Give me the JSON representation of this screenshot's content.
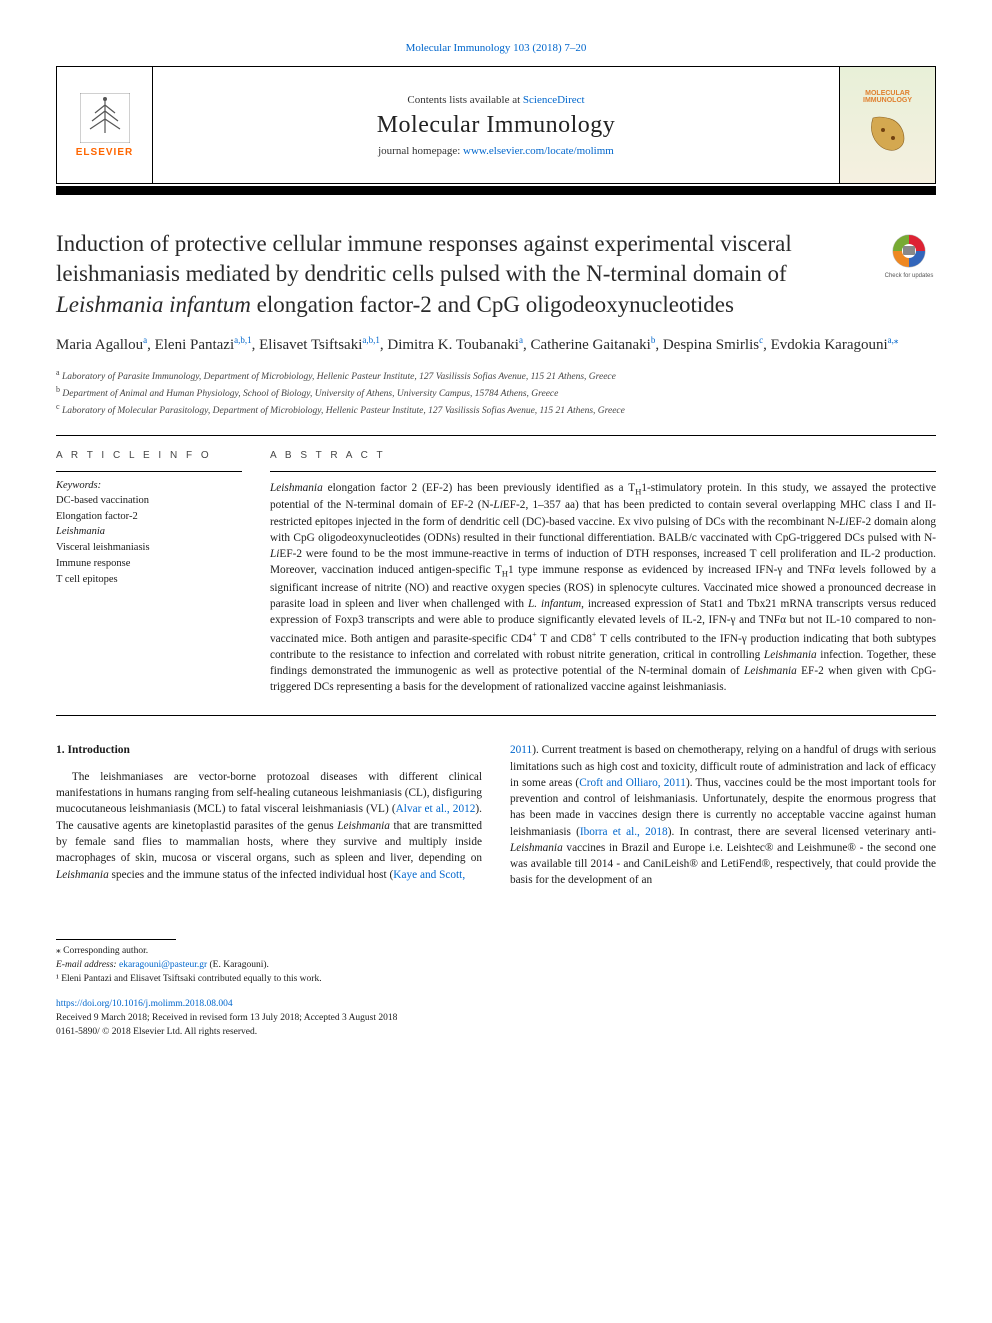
{
  "top_link": "Molecular Immunology 103 (2018) 7–20",
  "header": {
    "publisher_label": "ELSEVIER",
    "contents_prefix": "Contents lists available at ",
    "contents_link": "ScienceDirect",
    "journal_name": "Molecular Immunology",
    "homepage_prefix": "journal homepage: ",
    "homepage_link": "www.elsevier.com/locate/molimm",
    "cover_title": "MOLECULAR IMMUNOLOGY"
  },
  "check_updates_label": "Check for updates",
  "title_parts": {
    "p1": "Induction of protective cellular immune responses against experimental visceral leishmaniasis mediated by dendritic cells pulsed with the N-terminal domain of ",
    "ital": "Leishmania infantum",
    "p2": " elongation factor-2 and CpG oligodeoxynucleotides"
  },
  "authors": {
    "list": [
      {
        "name": "Maria Agallou",
        "sup": "a"
      },
      {
        "name": "Eleni Pantazi",
        "sup": "a,b,1"
      },
      {
        "name": "Elisavet Tsiftsaki",
        "sup": "a,b,1"
      },
      {
        "name": "Dimitra K. Toubanaki",
        "sup": "a"
      },
      {
        "name": "Catherine Gaitanaki",
        "sup": "b"
      },
      {
        "name": "Despina Smirlis",
        "sup": "c"
      },
      {
        "name": "Evdokia Karagouni",
        "sup": "a,⁎"
      }
    ]
  },
  "affiliations": [
    {
      "sup": "a",
      "text": "Laboratory of Parasite Immunology, Department of Microbiology, Hellenic Pasteur Institute, 127 Vasilissis Sofias Avenue, 115 21 Athens, Greece"
    },
    {
      "sup": "b",
      "text": "Department of Animal and Human Physiology, School of Biology, University of Athens, University Campus, 15784 Athens, Greece"
    },
    {
      "sup": "c",
      "text": "Laboratory of Molecular Parasitology, Department of Microbiology, Hellenic Pasteur Institute, 127 Vasilissis Sofias Avenue, 115 21 Athens, Greece"
    }
  ],
  "article_info": {
    "heading": "A R T I C L E  I N F O",
    "keywords_label": "Keywords:",
    "keywords": [
      "DC-based vaccination",
      "Elongation factor-2",
      "Leishmania",
      "Visceral leishmaniasis",
      "Immune response",
      "T cell epitopes"
    ],
    "keywords_italic_idx": 2
  },
  "abstract": {
    "heading": "A B S T R A C T",
    "text_parts": [
      {
        "t": "Leishmania",
        "ital": true
      },
      {
        "t": " elongation factor 2 (EF-2) has been previously identified as a T"
      },
      {
        "t": "H",
        "sub": true
      },
      {
        "t": "1-stimulatory protein. In this study, we assayed the protective potential of the N-terminal domain of EF-2 (N-"
      },
      {
        "t": "Li",
        "ital": true
      },
      {
        "t": "EF-2, 1–357 aa) that has been predicted to contain several overlapping MHC class I and II-restricted epitopes injected in the form of dendritic cell (DC)-based vaccine. Ex vivo pulsing of DCs with the recombinant N-"
      },
      {
        "t": "Li",
        "ital": true
      },
      {
        "t": "EF-2 domain along with CpG oligodeoxynucleotides (ODNs) resulted in their functional differentiation. BALB/c vaccinated with CpG-triggered DCs pulsed with N-"
      },
      {
        "t": "Li",
        "ital": true
      },
      {
        "t": "EF-2 were found to be the most immune-reactive in terms of induction of DTH responses, increased T cell proliferation and IL-2 production. Moreover, vaccination induced antigen-specific T"
      },
      {
        "t": "H",
        "sub": true
      },
      {
        "t": "1 type immune response as evidenced by increased IFN-γ and TNFα levels followed by a significant increase of nitrite (NO) and reactive oxygen species (ROS) in splenocyte cultures. Vaccinated mice showed a pronounced decrease in parasite load in spleen and liver when challenged with "
      },
      {
        "t": "L. infantum",
        "ital": true
      },
      {
        "t": ", increased expression of Stat1 and Tbx21 mRNA transcripts versus reduced expression of Foxp3 transcripts and were able to produce significantly elevated levels of IL-2, IFN-γ and TNFα but not IL-10 compared to non-vaccinated mice. Both antigen and parasite-specific CD4"
      },
      {
        "t": "+",
        "sup": true
      },
      {
        "t": " T and CD8"
      },
      {
        "t": "+",
        "sup": true
      },
      {
        "t": " T cells contributed to the IFN-γ production indicating that both subtypes contribute to the resistance to infection and correlated with robust nitrite generation, critical in controlling "
      },
      {
        "t": "Leishmania",
        "ital": true
      },
      {
        "t": " infection. Together, these findings demonstrated the immunogenic as well as protective potential of the N-terminal domain of "
      },
      {
        "t": "Leishmania",
        "ital": true
      },
      {
        "t": " EF-2 when given with CpG-triggered DCs representing a basis for the development of rationalized vaccine against leishmaniasis."
      }
    ]
  },
  "intro": {
    "heading": "1. Introduction",
    "col1_parts": [
      {
        "t": "The leishmaniases are vector-borne protozoal diseases with different clinical manifestations in humans ranging from self-healing cutaneous leishmaniasis (CL), disfiguring mucocutaneous leishmaniasis (MCL) to fatal visceral leishmaniasis (VL) ("
      },
      {
        "t": "Alvar et al., 2012",
        "link": true
      },
      {
        "t": "). The causative agents are kinetoplastid parasites of the genus "
      },
      {
        "t": "Leishmania",
        "ital": true
      },
      {
        "t": " that are transmitted by female sand flies to mammalian hosts, where they survive and multiply inside macrophages of skin, mucosa or visceral organs, such as spleen and liver, depending on "
      },
      {
        "t": "Leishmania",
        "ital": true
      },
      {
        "t": " species and the immune status of the infected individual host ("
      },
      {
        "t": "Kaye and Scott,",
        "link": true
      }
    ],
    "col2_parts": [
      {
        "t": "2011",
        "link": true
      },
      {
        "t": "). Current treatment is based on chemotherapy, relying on a handful of drugs with serious limitations such as high cost and toxicity, difficult route of administration and lack of efficacy in some areas ("
      },
      {
        "t": "Croft and Olliaro, 2011",
        "link": true
      },
      {
        "t": "). Thus, vaccines could be the most important tools for prevention and control of leishmaniasis. Unfortunately, despite the enormous progress that has been made in vaccines design there is currently no acceptable vaccine against human leishmaniasis ("
      },
      {
        "t": "Iborra et al., 2018",
        "link": true
      },
      {
        "t": "). In contrast, there are several licensed veterinary anti-"
      },
      {
        "t": "Leishmania",
        "ital": true
      },
      {
        "t": " vaccines in Brazil and Europe i.e. Leishtec® and Leishmune® - the second one was available till 2014 - and CaniLeish® and LetiFend®, respectively, that could provide the basis for the development of an"
      }
    ]
  },
  "footnotes": {
    "corr_label": "⁎ Corresponding author.",
    "email_label": "E-mail address:",
    "email": "ekaragouni@pasteur.gr",
    "email_suffix": " (E. Karagouni).",
    "fn1": "¹ Eleni Pantazi and Elisavet Tsiftsaki contributed equally to this work."
  },
  "doi": {
    "link": "https://doi.org/10.1016/j.molimm.2018.08.004",
    "dates": "Received 9 March 2018; Received in revised form 13 July 2018; Accepted 3 August 2018",
    "copyright": "0161-5890/ © 2018 Elsevier Ltd. All rights reserved."
  },
  "colors": {
    "link": "#0066cc",
    "accent_orange": "#ff6600",
    "text": "#1a1a1a"
  }
}
